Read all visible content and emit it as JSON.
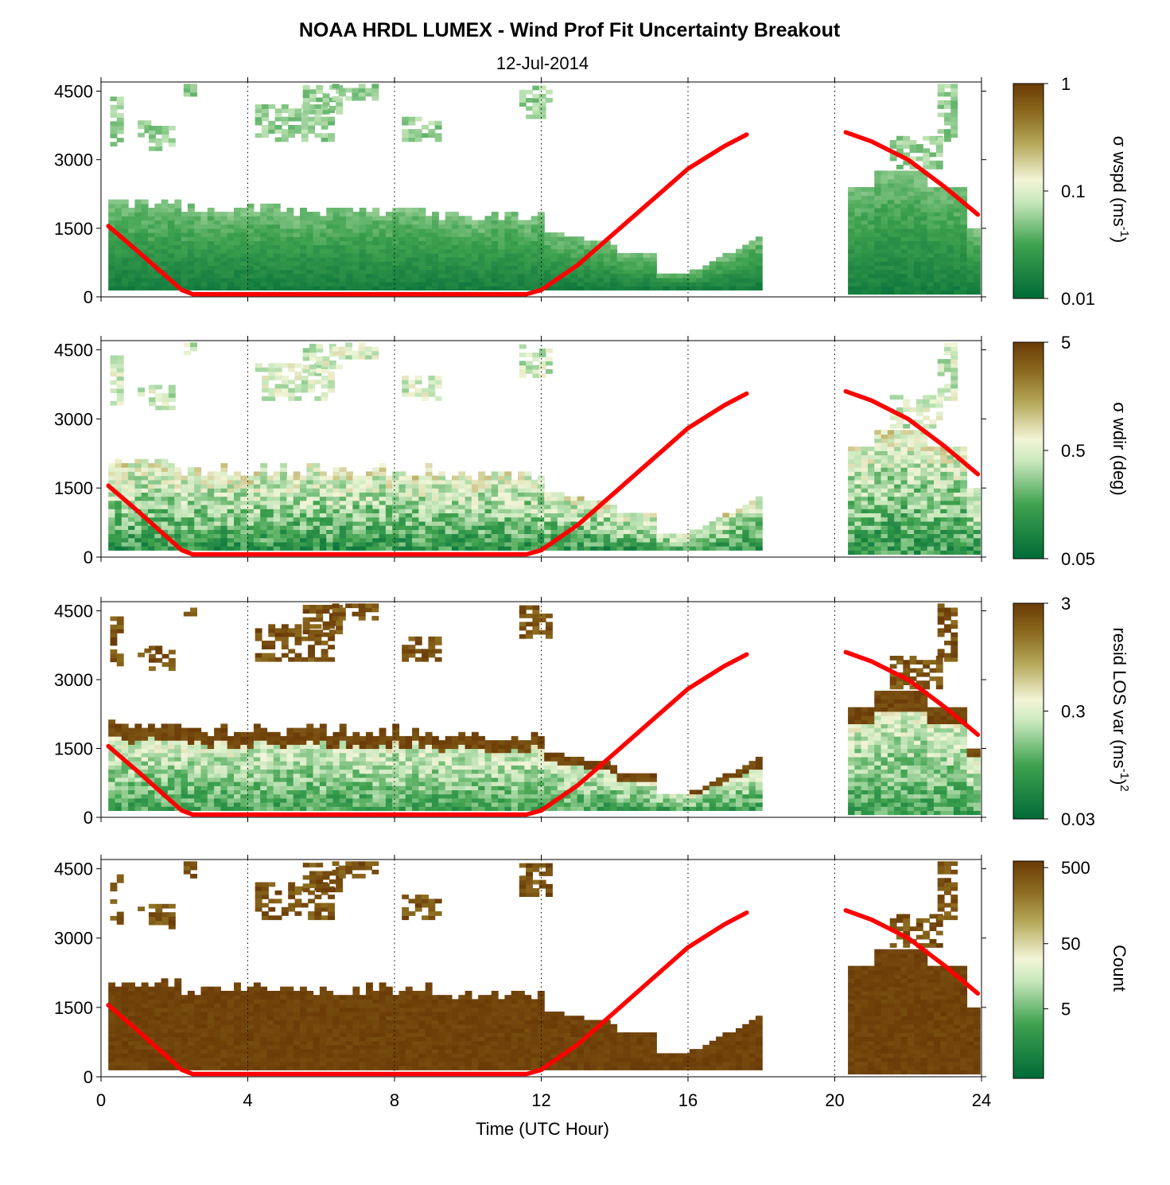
{
  "chart_data": {
    "type": "heatmap",
    "title": "NOAA HRDL LUMEX - Wind Prof Fit Uncertainty Breakout",
    "subtitle": "12-Jul-2014",
    "xlabel": "Time (UTC Hour)",
    "xlim": [
      0,
      24
    ],
    "x_ticks": [
      "0",
      "4",
      "8",
      "12",
      "16",
      "20",
      "24"
    ],
    "x_gridlines": [
      4,
      8,
      12,
      16,
      20,
      24
    ],
    "ylim": [
      0,
      4700
    ],
    "y_ticks": [
      "0",
      "1500",
      "3000",
      "4500"
    ],
    "panels": [
      {
        "colorbar_label": "σ wspd (ms",
        "colorbar_label_sup": "-1",
        "colorbar_label_tail": ")",
        "colorbar_scale": "log",
        "colorbar_ticks": [
          "1",
          "0.1",
          "0.01"
        ],
        "palette": "dark green - light - brown"
      },
      {
        "colorbar_label": "σ wdir (deg)",
        "colorbar_label_sup": "",
        "colorbar_label_tail": "",
        "colorbar_scale": "log",
        "colorbar_ticks": [
          "5",
          "0.5",
          "0.05"
        ],
        "palette": "dark green - light - brown"
      },
      {
        "colorbar_label": "resid LOS var (ms",
        "colorbar_label_sup": "-1",
        "colorbar_label_tail": ")",
        "colorbar_label_sup2": "2",
        "colorbar_scale": "log",
        "colorbar_ticks": [
          "3",
          "0.3",
          "0.03"
        ],
        "palette": "dark green - light - brown"
      },
      {
        "colorbar_label": "Count",
        "colorbar_label_sup": "",
        "colorbar_label_tail": "",
        "colorbar_scale": "log",
        "colorbar_ticks": [
          "500",
          "50",
          "5"
        ],
        "palette": "dark green - light - brown"
      }
    ],
    "boundary_layer_line": {
      "color": "#ff0000",
      "segments": [
        {
          "x": [
            0.2,
            1.0,
            2.2,
            2.5,
            6.0,
            11.6,
            12.0,
            13.0,
            14.0,
            15.0,
            16.0,
            17.0,
            17.6
          ],
          "y": [
            1550,
            1000,
            150,
            60,
            60,
            60,
            150,
            700,
            1400,
            2100,
            2800,
            3300,
            3550
          ]
        },
        {
          "x": [
            20.3,
            21.0,
            22.0,
            23.0,
            23.9
          ],
          "y": [
            3600,
            3400,
            3000,
            2400,
            1800
          ]
        }
      ]
    },
    "data_extent": [
      {
        "x": [
          0.2,
          17.9
        ],
        "y": [
          150,
          4500
        ]
      },
      {
        "x": [
          20.2,
          23.9
        ],
        "y": [
          50,
          4500
        ]
      }
    ]
  },
  "colors": {
    "dark_green": "#006b37",
    "light": "#f2f5d7",
    "brown": "#6b3b07",
    "line_red": "#ff0000"
  }
}
